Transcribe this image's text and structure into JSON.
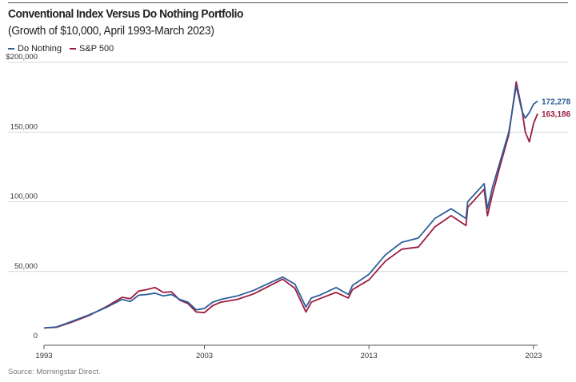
{
  "chart_data": {
    "type": "line",
    "title": "Conventional Index Versus Do Nothing Portfolio",
    "subtitle": "(Growth of $10,000, April 1993-March 2023)",
    "source": "Source: Morningstar Direct.",
    "xlabel": "",
    "ylabel": "",
    "x_ticks": [
      "1993",
      "2003",
      "2013",
      "2023"
    ],
    "y_ticks": [
      "0",
      "50,000",
      "100,000",
      "150,000",
      "$200,000"
    ],
    "y_tick_values": [
      0,
      50000,
      100000,
      150000,
      200000
    ],
    "xlim": [
      1993.25,
      2023.25
    ],
    "ylim": [
      0,
      200000
    ],
    "grid": "horizontal",
    "legend": "top-left",
    "series": [
      {
        "name": "Do Nothing",
        "color": "#2f5e99",
        "end_label": "172,278",
        "x": [
          1993.25,
          1994,
          1995,
          1996,
          1997,
          1998,
          1998.5,
          1999,
          1999.5,
          2000,
          2000.5,
          2001,
          2001.5,
          2002,
          2002.5,
          2003,
          2003.5,
          2004,
          2005,
          2006,
          2007,
          2007.75,
          2008.5,
          2009.17,
          2009.5,
          2010,
          2011,
          2011.75,
          2012,
          2013,
          2014,
          2015,
          2016,
          2017,
          2018,
          2018.9,
          2019,
          2020,
          2020.2,
          2020.5,
          2021,
          2021.5,
          2021.95,
          2022.3,
          2022.5,
          2022.75,
          2023,
          2023.25
        ],
        "y": [
          9500,
          10200,
          14500,
          19000,
          24000,
          30000,
          28500,
          33000,
          33500,
          34500,
          32500,
          33500,
          30000,
          28000,
          22500,
          23500,
          28000,
          30000,
          32500,
          36500,
          42000,
          46000,
          41000,
          24500,
          31000,
          33000,
          38500,
          33500,
          40000,
          48000,
          62000,
          71000,
          74000,
          88000,
          95000,
          88000,
          100000,
          113000,
          95000,
          110000,
          130000,
          150000,
          183000,
          165000,
          160000,
          164000,
          170000,
          172278
        ]
      },
      {
        "name": "S&P 500",
        "color": "#9b1c3f",
        "end_label": "163,186",
        "x": [
          1993.25,
          1994,
          1995,
          1996,
          1997,
          1998,
          1998.5,
          1999,
          1999.5,
          2000,
          2000.5,
          2001,
          2001.5,
          2002,
          2002.5,
          2003,
          2003.5,
          2004,
          2005,
          2006,
          2007,
          2007.75,
          2008.5,
          2009.17,
          2009.5,
          2010,
          2011,
          2011.75,
          2012,
          2013,
          2014,
          2015,
          2016,
          2017,
          2018,
          2018.9,
          2019,
          2020,
          2020.2,
          2020.5,
          2021,
          2021.5,
          2021.95,
          2022.3,
          2022.5,
          2022.75,
          2023,
          2023.25
        ],
        "y": [
          9500,
          10000,
          14000,
          18500,
          24500,
          31500,
          30500,
          36000,
          37000,
          38500,
          35000,
          35500,
          29500,
          27000,
          21000,
          20500,
          25500,
          28000,
          30000,
          34000,
          40000,
          44500,
          38000,
          21000,
          28000,
          30500,
          35000,
          31000,
          37000,
          44000,
          57500,
          66000,
          67500,
          82000,
          90000,
          83000,
          96000,
          109000,
          90000,
          105000,
          127000,
          148000,
          186000,
          166000,
          150000,
          143000,
          156000,
          163186
        ]
      }
    ]
  }
}
